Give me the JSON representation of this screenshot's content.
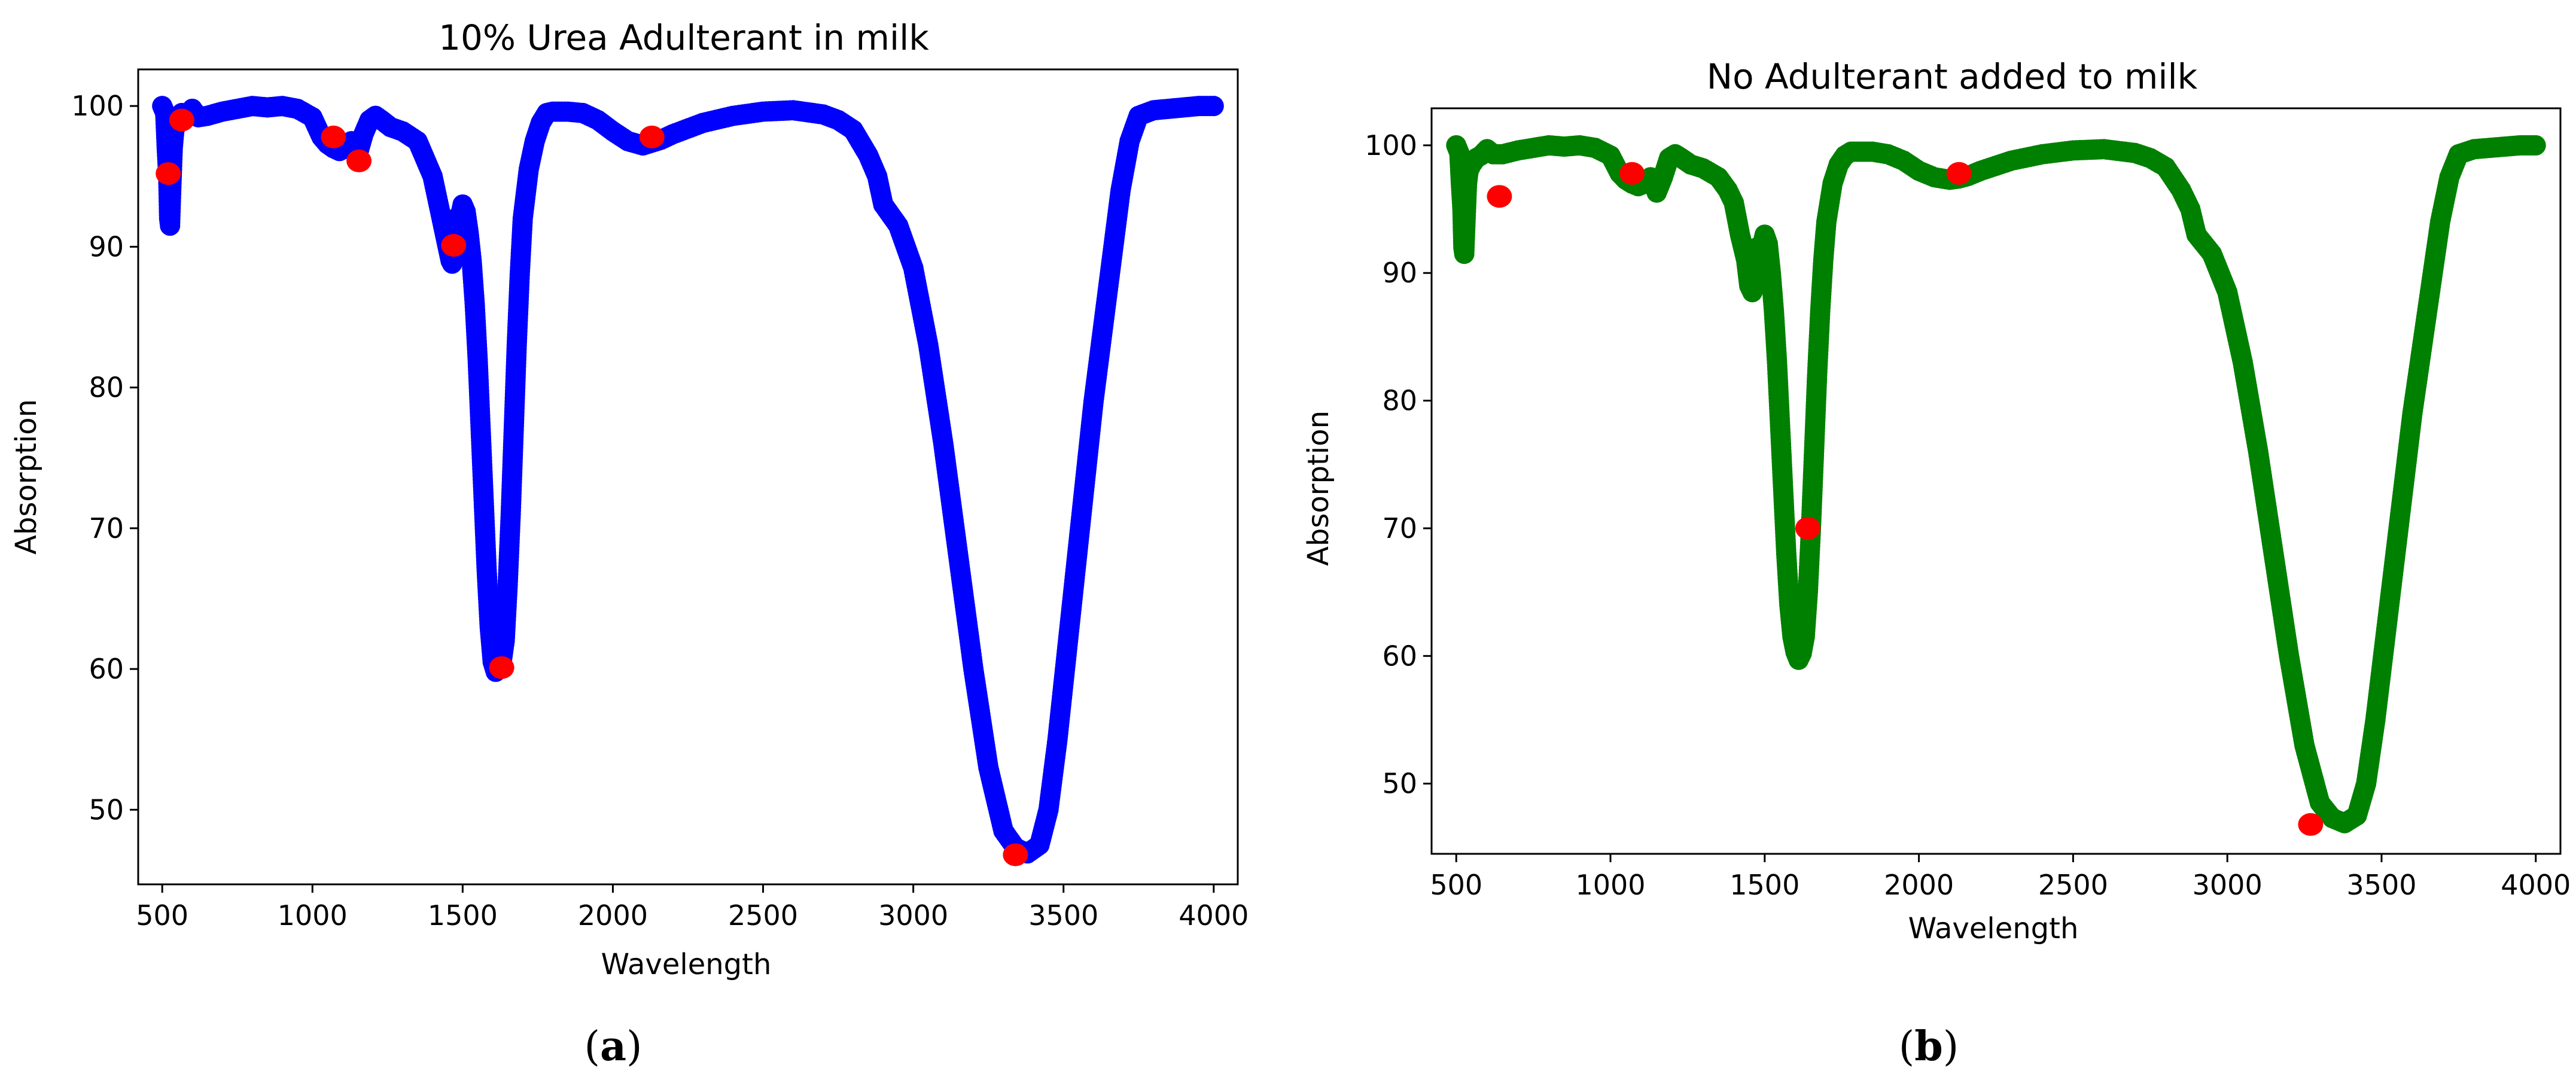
{
  "figure": {
    "panel_labels": [
      {
        "open": "(",
        "letter": "a",
        "close": ")"
      },
      {
        "open": "(",
        "letter": "b",
        "close": ")"
      }
    ]
  },
  "chart_data": [
    {
      "type": "scatter",
      "title": "10% Urea Adulterant in milk",
      "xlabel": "Wavelength",
      "ylabel": "Absorption",
      "xlim": [
        420,
        4080
      ],
      "ylim": [
        44.7,
        102.6
      ],
      "xticks": [
        500,
        1000,
        1500,
        2000,
        2500,
        3000,
        3500,
        4000
      ],
      "yticks": [
        50,
        60,
        70,
        80,
        90,
        100
      ],
      "grid": false,
      "legend": "none",
      "series": [
        {
          "color": "#0000ff",
          "marker": "circle",
          "x": [
            500,
            510,
            515,
            520,
            523,
            526,
            530,
            535,
            540,
            550,
            565,
            580,
            600,
            620,
            650,
            700,
            750,
            800,
            850,
            900,
            950,
            1000,
            1030,
            1050,
            1070,
            1090,
            1110,
            1130,
            1150,
            1170,
            1190,
            1210,
            1230,
            1260,
            1300,
            1350,
            1380,
            1400,
            1420,
            1440,
            1450,
            1460,
            1465,
            1470,
            1475,
            1480,
            1490,
            1500,
            1510,
            1520,
            1530,
            1540,
            1550,
            1560,
            1570,
            1580,
            1590,
            1600,
            1610,
            1620,
            1630,
            1640,
            1650,
            1660,
            1670,
            1680,
            1690,
            1700,
            1720,
            1740,
            1760,
            1780,
            1800,
            1850,
            1900,
            1950,
            2000,
            2050,
            2100,
            2130,
            2160,
            2200,
            2300,
            2400,
            2500,
            2600,
            2700,
            2750,
            2800,
            2850,
            2880,
            2900,
            2950,
            3000,
            3050,
            3100,
            3150,
            3200,
            3250,
            3300,
            3340,
            3380,
            3420,
            3450,
            3480,
            3510,
            3540,
            3570,
            3600,
            3630,
            3660,
            3690,
            3720,
            3750,
            3800,
            3850,
            3900,
            3950,
            4000
          ],
          "y": [
            100,
            99.5,
            97,
            95,
            92,
            91.5,
            94,
            97,
            98.2,
            99,
            99.5,
            99.2,
            99.8,
            99.2,
            99.3,
            99.6,
            99.8,
            100,
            99.9,
            100,
            99.8,
            99.2,
            97.8,
            97.3,
            97,
            96.8,
            97,
            97.5,
            96.5,
            98,
            99,
            99.3,
            99,
            98.5,
            98.2,
            97.5,
            96,
            95,
            93,
            91,
            90,
            89,
            88.8,
            90,
            92,
            90.8,
            92,
            93,
            92.5,
            91,
            89,
            86,
            82,
            77,
            72,
            67,
            63,
            60.5,
            59.8,
            60,
            60.5,
            62,
            66,
            71,
            77,
            83,
            88,
            92,
            95.5,
            97.5,
            98.8,
            99.5,
            99.6,
            99.6,
            99.5,
            99,
            98.2,
            97.5,
            97.2,
            97.4,
            97.6,
            98,
            98.8,
            99.3,
            99.6,
            99.7,
            99.4,
            99,
            98.3,
            96.5,
            95,
            93,
            91.5,
            88.5,
            83,
            76,
            68,
            60,
            53,
            48.5,
            47.3,
            46.9,
            47.5,
            50,
            55,
            61,
            67,
            73,
            79,
            84,
            89,
            94,
            97.5,
            99.3,
            99.7,
            99.8,
            99.9,
            100,
            100
          ]
        },
        {
          "color": "#ff0000",
          "marker": "circle",
          "x": [
            520,
            565,
            1070,
            1155,
            1470,
            1630,
            2130,
            3340
          ],
          "y": [
            95.2,
            99,
            97.8,
            96.1,
            90.1,
            60.1,
            97.8,
            46.8
          ]
        }
      ]
    },
    {
      "type": "scatter",
      "title": "No Adulterant added to milk",
      "xlabel": "Wavelength",
      "ylabel": "Absorption",
      "xlim": [
        420,
        4080
      ],
      "ylim": [
        44.5,
        102.9
      ],
      "xticks": [
        500,
        1000,
        1500,
        2000,
        2500,
        3000,
        3500,
        4000
      ],
      "yticks": [
        50,
        60,
        70,
        80,
        90,
        100
      ],
      "grid": false,
      "legend": "none",
      "series": [
        {
          "color": "#008000",
          "marker": "circle",
          "x": [
            500,
            510,
            515,
            520,
            523,
            526,
            530,
            535,
            540,
            550,
            565,
            580,
            600,
            620,
            650,
            700,
            750,
            800,
            850,
            900,
            950,
            1000,
            1030,
            1050,
            1070,
            1090,
            1110,
            1130,
            1150,
            1170,
            1190,
            1210,
            1230,
            1260,
            1300,
            1350,
            1380,
            1400,
            1420,
            1440,
            1450,
            1460,
            1465,
            1470,
            1475,
            1480,
            1490,
            1500,
            1510,
            1520,
            1530,
            1540,
            1550,
            1560,
            1570,
            1580,
            1590,
            1600,
            1610,
            1620,
            1630,
            1640,
            1650,
            1660,
            1670,
            1680,
            1690,
            1700,
            1720,
            1740,
            1760,
            1780,
            1800,
            1850,
            1900,
            1950,
            2000,
            2050,
            2100,
            2130,
            2160,
            2200,
            2300,
            2400,
            2500,
            2600,
            2700,
            2750,
            2800,
            2850,
            2880,
            2900,
            2950,
            3000,
            3050,
            3100,
            3150,
            3200,
            3250,
            3300,
            3340,
            3380,
            3420,
            3450,
            3480,
            3510,
            3540,
            3570,
            3600,
            3630,
            3660,
            3690,
            3720,
            3750,
            3800,
            3850,
            3900,
            3950,
            4000
          ],
          "y": [
            100,
            99.4,
            97,
            95,
            92,
            91.5,
            94,
            97,
            98,
            98.5,
            99,
            99.2,
            99.7,
            99.3,
            99.3,
            99.6,
            99.8,
            100,
            99.9,
            100,
            99.8,
            99.2,
            97.8,
            97.3,
            97,
            96.8,
            97,
            97.5,
            96.3,
            97.5,
            99,
            99.3,
            99,
            98.5,
            98.2,
            97.5,
            96.5,
            95.5,
            93,
            91,
            89,
            88.5,
            89,
            90.5,
            92,
            91,
            92,
            93,
            92.3,
            90,
            87,
            83,
            78,
            73,
            68,
            64,
            61.5,
            60.3,
            59.7,
            60.2,
            61.5,
            65,
            70,
            76,
            82,
            87,
            91,
            94,
            97,
            98.5,
            99.2,
            99.5,
            99.5,
            99.5,
            99.3,
            98.8,
            98,
            97.5,
            97.3,
            97.4,
            97.6,
            98,
            98.8,
            99.3,
            99.6,
            99.7,
            99.4,
            99,
            98.3,
            96.5,
            95,
            93,
            91.5,
            88.5,
            83,
            76,
            68,
            60,
            53,
            48.5,
            47.3,
            46.9,
            47.5,
            50,
            55,
            61,
            67,
            73,
            79,
            84,
            89,
            94,
            97.5,
            99.3,
            99.7,
            99.8,
            99.9,
            100,
            100
          ]
        },
        {
          "color": "#ff0000",
          "marker": "circle",
          "x": [
            640,
            1070,
            1640,
            2130,
            3270
          ],
          "y": [
            96,
            97.8,
            70,
            97.8,
            46.8
          ]
        }
      ]
    }
  ]
}
